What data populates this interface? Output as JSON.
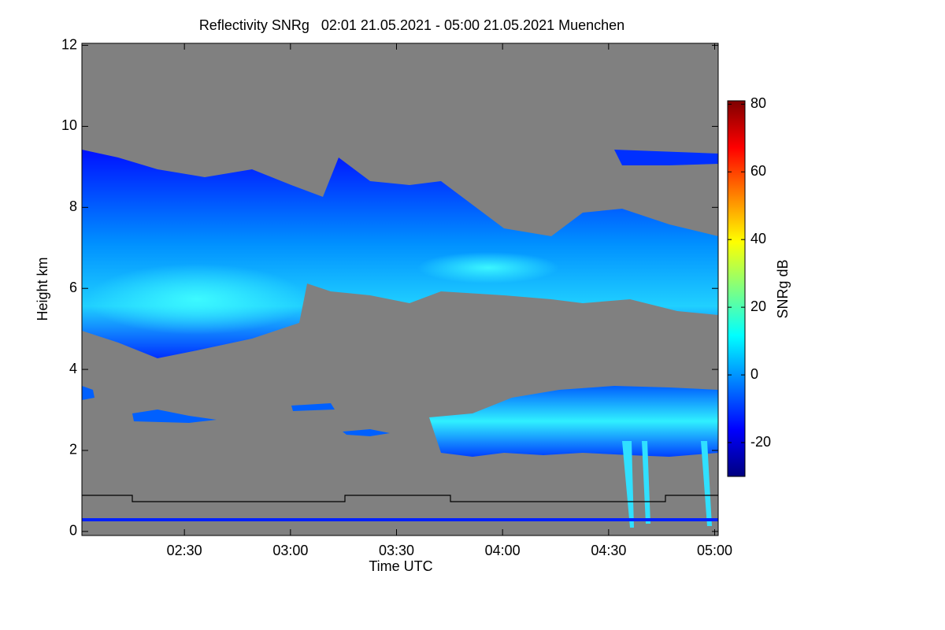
{
  "chart_data": {
    "type": "heatmap",
    "title": "Reflectivity SNRg   02:01 21.05.2021 - 05:00 21.05.2021 Muenchen",
    "x_label": "Time UTC",
    "y_label": "Height km",
    "xlim": [
      121,
      301
    ],
    "xticks": [
      {
        "value": 150,
        "label": "02:30"
      },
      {
        "value": 180,
        "label": "03:00"
      },
      {
        "value": 210,
        "label": "03:30"
      },
      {
        "value": 240,
        "label": "04:00"
      },
      {
        "value": 270,
        "label": "04:30"
      },
      {
        "value": 300,
        "label": "05:00"
      }
    ],
    "ylim": [
      -0.1,
      12.05
    ],
    "yticks": [
      0,
      2,
      4,
      6,
      8,
      10,
      12
    ],
    "background": "#808080",
    "colorbar": {
      "label": "SNRg dB",
      "lim": [
        -30,
        81
      ],
      "ticks": [
        -20,
        0,
        20,
        40,
        60,
        80
      ],
      "colors": [
        "#00007f",
        "#0000ff",
        "#0080ff",
        "#00ffff",
        "#80ff80",
        "#ffff00",
        "#ff8000",
        "#ff0000",
        "#7f0000"
      ]
    }
  }
}
